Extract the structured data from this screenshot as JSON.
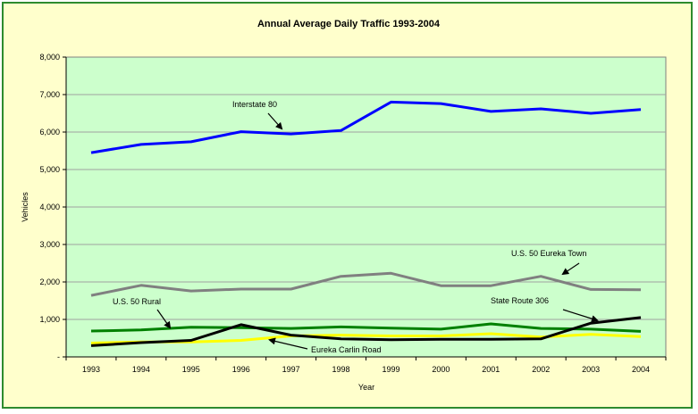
{
  "chart_data": {
    "type": "line",
    "title": "Annual Average Daily Traffic 1993-2004",
    "xlabel": "Year",
    "ylabel": "Vehicles",
    "x": [
      "1993",
      "1994",
      "1995",
      "1996",
      "1997",
      "1998",
      "1999",
      "2000",
      "2001",
      "2002",
      "2003",
      "2004"
    ],
    "ylim": [
      0,
      8000
    ],
    "yticks": [
      "-",
      "1,000",
      "2,000",
      "3,000",
      "4,000",
      "5,000",
      "6,000",
      "7,000",
      "8,000"
    ],
    "grid": true,
    "legend": "none",
    "plot_background": "#ccffcc",
    "chart_background": "#ffffcc",
    "series": [
      {
        "name": "Interstate 80",
        "color": "#0000ff",
        "values": [
          5450,
          5670,
          5740,
          6010,
          5950,
          6040,
          6800,
          6760,
          6550,
          6620,
          6500,
          6600
        ]
      },
      {
        "name": "U.S. 50 Eureka Town",
        "color": "#808080",
        "values": [
          1640,
          1910,
          1760,
          1810,
          1810,
          2150,
          2230,
          1900,
          1900,
          2150,
          1800,
          1790
        ]
      },
      {
        "name": "U.S. 50 Rural",
        "color": "#008000",
        "values": [
          690,
          720,
          790,
          780,
          760,
          800,
          770,
          740,
          880,
          760,
          740,
          680
        ]
      },
      {
        "name": "Eureka Carlin Road",
        "color": "#ffff00",
        "values": [
          370,
          400,
          400,
          440,
          560,
          580,
          560,
          560,
          620,
          530,
          600,
          540
        ]
      },
      {
        "name": "State Route 306",
        "color": "#000000",
        "values": [
          300,
          380,
          440,
          860,
          580,
          480,
          460,
          470,
          470,
          480,
          900,
          1050
        ]
      }
    ],
    "annotations": [
      {
        "text": "Interstate 80"
      },
      {
        "text": "U.S. 50 Eureka Town"
      },
      {
        "text": "U.S. 50 Rural"
      },
      {
        "text": "State Route 306"
      },
      {
        "text": "Eureka Carlin Road"
      }
    ]
  }
}
